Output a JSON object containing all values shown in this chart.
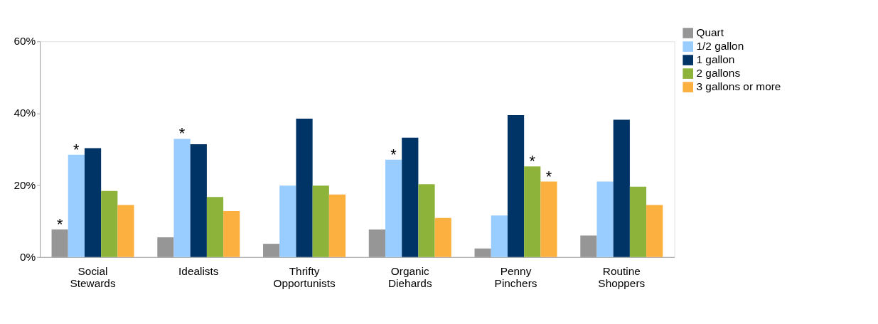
{
  "chart_data": {
    "type": "bar",
    "categories": [
      "Social Stewards",
      "Idealists",
      "Thrifty Opportunists",
      "Organic Diehards",
      "Penny Pinchers",
      "Routine Shoppers"
    ],
    "series": [
      {
        "name": "Quart",
        "color": "#969696",
        "values": [
          7.7,
          5.5,
          3.7,
          7.7,
          2.4,
          6.0
        ],
        "value_labels": [
          "*",
          null,
          null,
          null,
          null,
          null
        ]
      },
      {
        "name": "1/2 gallon",
        "color": "#99ccff",
        "values": [
          28.5,
          32.9,
          19.9,
          27.1,
          11.6,
          21.0
        ],
        "value_labels": [
          "*",
          "*",
          null,
          "*",
          null,
          null
        ]
      },
      {
        "name": "1 gallon",
        "color": "#003366",
        "values": [
          30.3,
          31.4,
          38.5,
          33.2,
          39.5,
          38.2
        ]
      },
      {
        "name": "2 gallons",
        "color": "#8db33a",
        "values": [
          18.4,
          16.7,
          19.9,
          20.3,
          25.2,
          19.6
        ],
        "value_labels": [
          null,
          null,
          null,
          null,
          "*",
          null
        ]
      },
      {
        "name": "3 gallons or more",
        "color": "#fbb040",
        "values": [
          14.5,
          12.8,
          17.4,
          10.9,
          21.0,
          14.5
        ],
        "value_labels": [
          null,
          null,
          null,
          null,
          "*",
          null
        ]
      }
    ],
    "ylim": [
      0,
      60
    ],
    "yticks": [
      {
        "value": 0,
        "label": "0%"
      },
      {
        "value": 20,
        "label": "20%"
      },
      {
        "value": 40,
        "label": "40%"
      },
      {
        "value": 60,
        "label": "60%"
      }
    ],
    "grid": false,
    "legend": "top right"
  }
}
